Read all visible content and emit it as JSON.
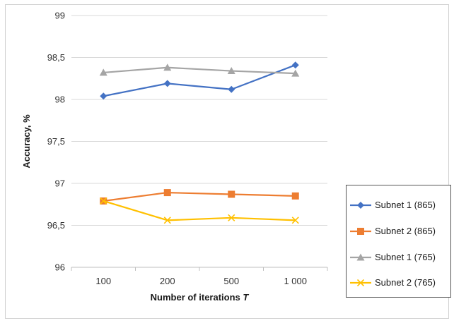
{
  "chart_data": {
    "type": "line",
    "xlabel": "Number of iterations ",
    "xlabel_italic": "T",
    "ylabel": "Accuracy, %",
    "categories": [
      "100",
      "200",
      "500",
      "1 000"
    ],
    "yticks": [
      "96",
      "96,5",
      "97",
      "97,5",
      "98",
      "98,5",
      "99"
    ],
    "ylim": [
      96,
      99
    ],
    "grid": true,
    "legend_position": "right",
    "series": [
      {
        "name": "Subnet 1 (865)",
        "color": "#4472C4",
        "marker": "diamond",
        "values": [
          98.04,
          98.19,
          98.12,
          98.41
        ]
      },
      {
        "name": "Subnet 2 (865)",
        "color": "#ED7D31",
        "marker": "square",
        "values": [
          96.79,
          96.89,
          96.87,
          96.85
        ]
      },
      {
        "name": "Subnet 1 (765)",
        "color": "#A5A5A5",
        "marker": "triangle",
        "values": [
          98.32,
          98.38,
          98.34,
          98.31
        ]
      },
      {
        "name": "Subnet 2 (765)",
        "color": "#FFC000",
        "marker": "x",
        "values": [
          96.79,
          96.56,
          96.59,
          96.56
        ]
      }
    ]
  }
}
